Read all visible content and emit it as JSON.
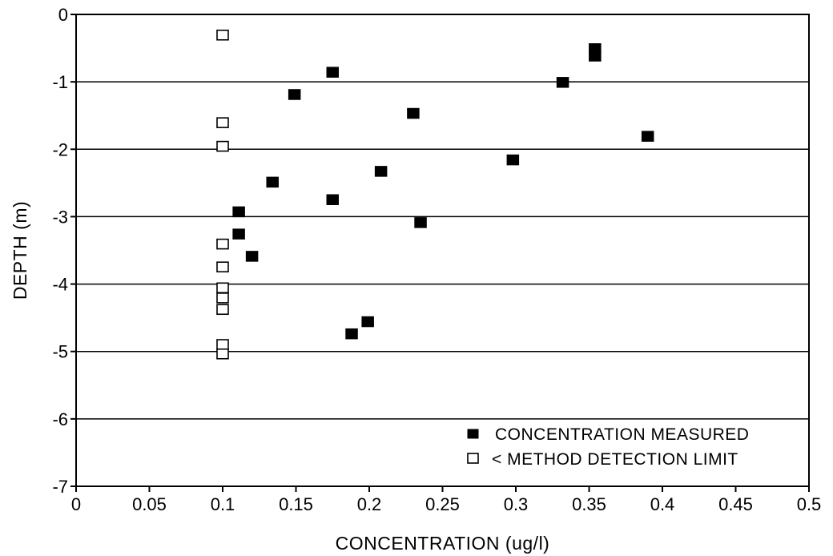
{
  "chart_data": {
    "type": "scatter",
    "title": "",
    "xlabel": "CONCENTRATION (ug/l)",
    "ylabel": "DEPTH (m)",
    "xlim": [
      0,
      0.5
    ],
    "ylim": [
      -7,
      0
    ],
    "x_ticks": [
      "0",
      "0.05",
      "0.1",
      "0.15",
      "0.2",
      "0.25",
      "0.3",
      "0.35",
      "0.4",
      "0.45",
      "0.5"
    ],
    "y_ticks": [
      "0",
      "-1",
      "-2",
      "-3",
      "-4",
      "-5",
      "-6",
      "-7"
    ],
    "grid": "horizontal",
    "legend_position": "bottom-right",
    "series": [
      {
        "name": "CONCENTRATION MEASURED",
        "marker": "filled-square",
        "color": "#000000",
        "points": [
          {
            "x": 0.354,
            "y": -0.52
          },
          {
            "x": 0.354,
            "y": -0.63
          },
          {
            "x": 0.175,
            "y": -0.87
          },
          {
            "x": 0.332,
            "y": -1.02
          },
          {
            "x": 0.149,
            "y": -1.2
          },
          {
            "x": 0.23,
            "y": -1.48
          },
          {
            "x": 0.39,
            "y": -1.82
          },
          {
            "x": 0.298,
            "y": -2.17
          },
          {
            "x": 0.208,
            "y": -2.34
          },
          {
            "x": 0.134,
            "y": -2.5
          },
          {
            "x": 0.175,
            "y": -2.76
          },
          {
            "x": 0.111,
            "y": -2.94
          },
          {
            "x": 0.235,
            "y": -3.1
          },
          {
            "x": 0.111,
            "y": -3.27
          },
          {
            "x": 0.12,
            "y": -3.6
          },
          {
            "x": 0.199,
            "y": -4.57
          },
          {
            "x": 0.188,
            "y": -4.75
          }
        ]
      },
      {
        "name": "< METHOD DETECTION LIMIT",
        "marker": "open-square",
        "color": "#000000",
        "points": [
          {
            "x": 0.1,
            "y": -0.33
          },
          {
            "x": 0.1,
            "y": -1.63
          },
          {
            "x": 0.1,
            "y": -1.98
          },
          {
            "x": 0.1,
            "y": -3.43
          },
          {
            "x": 0.1,
            "y": -3.77
          },
          {
            "x": 0.1,
            "y": -4.08
          },
          {
            "x": 0.1,
            "y": -4.23
          },
          {
            "x": 0.1,
            "y": -4.4
          },
          {
            "x": 0.1,
            "y": -4.92
          },
          {
            "x": 0.1,
            "y": -5.06
          }
        ]
      }
    ]
  }
}
